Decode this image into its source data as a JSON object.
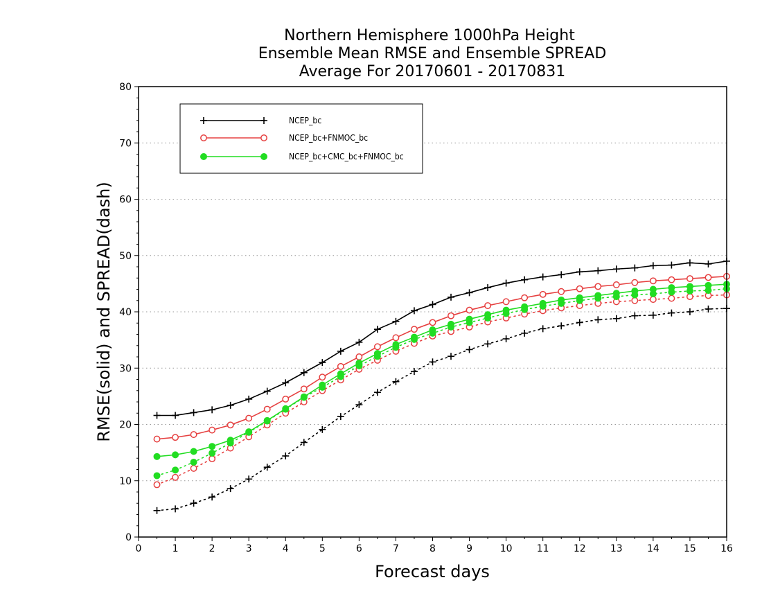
{
  "chart_data": {
    "type": "line",
    "title": [
      "Northern Hemisphere 1000hPa Height",
      "Ensemble Mean RMSE and Ensemble SPREAD",
      "Average For 20170601 - 20170831"
    ],
    "xlabel": "Forecast days",
    "ylabel": "RMSE(solid) and SPREAD(dash)",
    "xlim": [
      0,
      16
    ],
    "ylim": [
      0,
      80
    ],
    "xticks": [
      "0",
      "1",
      "2",
      "3",
      "4",
      "5",
      "6",
      "7",
      "8",
      "9",
      "10",
      "11",
      "12",
      "13",
      "14",
      "15",
      "16"
    ],
    "yticks": [
      "0",
      "10",
      "20",
      "30",
      "40",
      "50",
      "60",
      "70",
      "80"
    ],
    "grid": "horizontal dotted",
    "legend_position": "top-left",
    "x": [
      0.5,
      1,
      1.5,
      2,
      2.5,
      3,
      3.5,
      4,
      4.5,
      5,
      5.5,
      6,
      6.5,
      7,
      7.5,
      8,
      8.5,
      9,
      9.5,
      10,
      10.5,
      11,
      11.5,
      12,
      12.5,
      13,
      13.5,
      14,
      14.5,
      15,
      15.5,
      16
    ],
    "series": [
      {
        "name": "NCEP_bc",
        "color": "#000000",
        "marker": "plus",
        "rmse": [
          21.6,
          21.6,
          22.1,
          22.6,
          23.4,
          24.5,
          25.9,
          27.4,
          29.2,
          31.0,
          33.0,
          34.6,
          36.9,
          38.3,
          40.2,
          41.3,
          42.6,
          43.4,
          44.3,
          45.1,
          45.7,
          46.2,
          46.6,
          47.1,
          47.3,
          47.6,
          47.8,
          48.2,
          48.3,
          48.7,
          48.5,
          49.0
        ],
        "spread": [
          4.7,
          5.0,
          6.0,
          7.1,
          8.6,
          10.3,
          12.4,
          14.4,
          16.8,
          19.1,
          21.4,
          23.5,
          25.7,
          27.6,
          29.4,
          31.1,
          32.1,
          33.3,
          34.3,
          35.2,
          36.2,
          37.0,
          37.5,
          38.1,
          38.6,
          38.8,
          39.3,
          39.4,
          39.8,
          40.0,
          40.5,
          40.6
        ]
      },
      {
        "name": "NCEP_bc+FNMOC_bc",
        "color": "#e64040",
        "marker": "open-circle",
        "rmse": [
          17.4,
          17.7,
          18.2,
          19.0,
          19.9,
          21.1,
          22.7,
          24.5,
          26.3,
          28.4,
          30.3,
          32.0,
          33.8,
          35.4,
          36.9,
          38.1,
          39.3,
          40.3,
          41.1,
          41.8,
          42.5,
          43.1,
          43.6,
          44.1,
          44.5,
          44.8,
          45.2,
          45.5,
          45.7,
          45.9,
          46.1,
          46.3
        ],
        "spread": [
          9.3,
          10.6,
          12.2,
          13.9,
          15.8,
          17.8,
          19.9,
          22.0,
          24.0,
          26.0,
          27.9,
          29.8,
          31.4,
          33.0,
          34.4,
          35.7,
          36.5,
          37.3,
          38.2,
          38.9,
          39.6,
          40.2,
          40.7,
          41.1,
          41.5,
          41.8,
          42.0,
          42.2,
          42.4,
          42.7,
          42.9,
          43.0
        ]
      },
      {
        "name": "NCEP_bc+CMC_bc+FNMOC_bc",
        "color": "#22dd22",
        "marker": "filled-circle",
        "rmse": [
          14.3,
          14.6,
          15.2,
          16.1,
          17.2,
          18.7,
          20.7,
          22.8,
          24.9,
          27.0,
          29.0,
          30.9,
          32.6,
          34.2,
          35.5,
          36.8,
          37.8,
          38.7,
          39.5,
          40.3,
          40.9,
          41.5,
          42.1,
          42.5,
          42.9,
          43.3,
          43.7,
          44.0,
          44.3,
          44.5,
          44.7,
          44.9
        ],
        "spread": [
          10.9,
          11.9,
          13.3,
          14.9,
          16.7,
          18.6,
          20.6,
          22.7,
          24.8,
          26.6,
          28.5,
          30.4,
          32.1,
          33.7,
          35.1,
          36.2,
          37.3,
          38.1,
          38.9,
          39.7,
          40.4,
          41.0,
          41.5,
          42.0,
          42.4,
          42.7,
          43.0,
          43.2,
          43.5,
          43.7,
          43.8,
          44.1
        ]
      }
    ]
  }
}
